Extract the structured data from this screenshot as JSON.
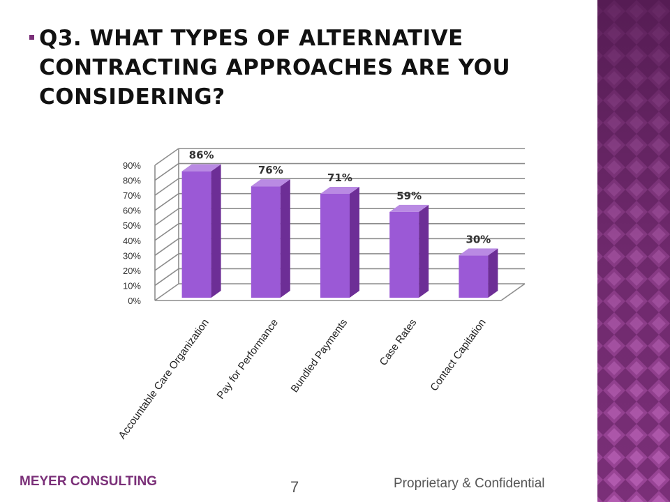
{
  "slide": {
    "title": "Q3.  WHAT TYPES OF ALTERNATIVE CONTRACTING APPROACHES ARE YOU CONSIDERING?",
    "footer_left": "MEYER CONSULTING",
    "page_number": "7",
    "footer_right": "Proprietary & Confidential"
  },
  "colors": {
    "accent": "#7a2f78",
    "bar_front": "#9b59d6",
    "bar_side": "#6d2e96",
    "bar_top": "#b98ae3"
  },
  "chart_data": {
    "type": "bar",
    "categories": [
      "Accountable Care Organization",
      "Pay for Performance",
      "Bundled Payments",
      "Case Rates",
      "Contact Capitation"
    ],
    "values": [
      86,
      76,
      71,
      59,
      30
    ],
    "value_labels": [
      "86%",
      "76%",
      "71%",
      "59%",
      "30%"
    ],
    "y_ticks": [
      "0%",
      "10%",
      "20%",
      "30%",
      "40%",
      "50%",
      "60%",
      "70%",
      "80%",
      "90%"
    ],
    "ylim": [
      0,
      90
    ],
    "grid": true,
    "legend": "none",
    "title": "",
    "xlabel": "",
    "ylabel": ""
  }
}
